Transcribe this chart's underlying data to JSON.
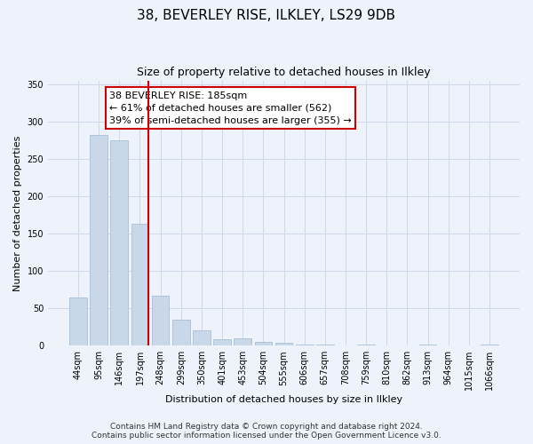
{
  "title": "38, BEVERLEY RISE, ILKLEY, LS29 9DB",
  "subtitle": "Size of property relative to detached houses in Ilkley",
  "xlabel": "Distribution of detached houses by size in Ilkley",
  "ylabel": "Number of detached properties",
  "categories": [
    "44sqm",
    "95sqm",
    "146sqm",
    "197sqm",
    "248sqm",
    "299sqm",
    "350sqm",
    "401sqm",
    "453sqm",
    "504sqm",
    "555sqm",
    "606sqm",
    "657sqm",
    "708sqm",
    "759sqm",
    "810sqm",
    "862sqm",
    "913sqm",
    "964sqm",
    "1015sqm",
    "1066sqm"
  ],
  "values": [
    65,
    282,
    275,
    163,
    67,
    35,
    20,
    9,
    10,
    5,
    4,
    2,
    1,
    0,
    2,
    0,
    0,
    2,
    0,
    0,
    2
  ],
  "bar_color": "#c8d8e8",
  "bar_edge_color": "#a8c0d4",
  "vline_index": 3,
  "vline_color": "#cc0000",
  "annotation_text": "38 BEVERLEY RISE: 185sqm\n← 61% of detached houses are smaller (562)\n39% of semi-detached houses are larger (355) →",
  "annotation_box_facecolor": "#ffffff",
  "annotation_box_edgecolor": "#cc0000",
  "ylim_max": 355,
  "yticks": [
    0,
    50,
    100,
    150,
    200,
    250,
    300,
    350
  ],
  "footer_line1": "Contains HM Land Registry data © Crown copyright and database right 2024.",
  "footer_line2": "Contains public sector information licensed under the Open Government Licence v3.0.",
  "background_color": "#eef2fa",
  "grid_color": "#d0d8ec",
  "title_fontsize": 11,
  "subtitle_fontsize": 9,
  "axis_label_fontsize": 8,
  "tick_fontsize": 7,
  "annotation_fontsize": 8,
  "footer_fontsize": 6.5
}
